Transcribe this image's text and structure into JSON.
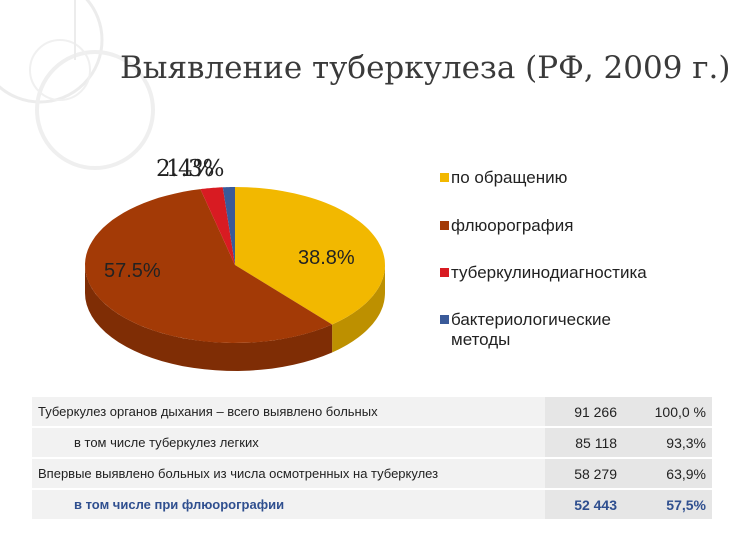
{
  "title": "Выявление туберкулеза (РФ, 2009 г.)",
  "chart_data": {
    "type": "pie",
    "categories": [
      "по обращению",
      "флюорография",
      "туберкулинодиагностика",
      "бактериологические методы"
    ],
    "values": [
      38.8,
      57.5,
      2.4,
      1.3
    ],
    "data_labels": [
      "38.8%",
      "57.5%",
      "2.4%",
      "1.3%"
    ],
    "colors": [
      "#f2b800",
      "#a33a06",
      "#d81b22",
      "#3a5a99"
    ],
    "legend_position": "right"
  },
  "table": {
    "rows": [
      {
        "label": "Туберкулез органов дыхания – всего выявлено больных",
        "count": "91 266",
        "percent": "100,0 %"
      },
      {
        "label": "в том числе туберкулез легких",
        "count": "85 118",
        "percent": "93,3%"
      },
      {
        "label": "Впервые выявлено больных из числа осмотренных на туберкулез",
        "count": "58 279",
        "percent": "63,9%"
      },
      {
        "label": "в том числе при флюорографии",
        "count": "52 443",
        "percent": "57,5%"
      }
    ]
  }
}
